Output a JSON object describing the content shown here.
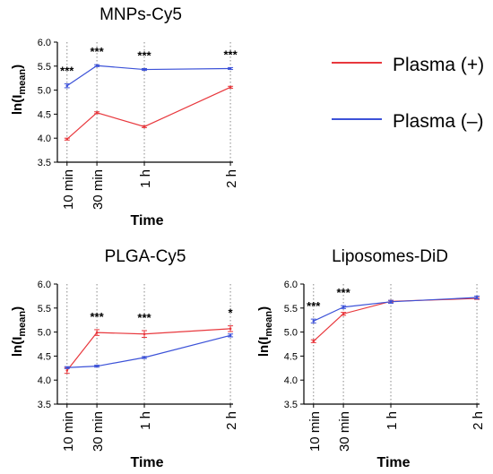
{
  "chart_data": [
    {
      "type": "line",
      "title": "MNPs-Cy5",
      "ylabel": "ln(I",
      "ylabel_sub": "mean",
      "ylabel_close": ")",
      "xlabel": "Time",
      "categories": [
        "10 min",
        "30 min",
        "1 h",
        "2 h"
      ],
      "x": [
        10,
        30,
        60,
        120
      ],
      "ylim": [
        3.5,
        6.0
      ],
      "yticks": [
        "3.5",
        "4.0",
        "4.5",
        "5.0",
        "5.5",
        "6.0"
      ],
      "grid": "vertical dotted lines at each time point",
      "series": [
        {
          "name": "Plasma (+)",
          "color": "#e8383d",
          "values": [
            3.98,
            4.53,
            4.24,
            5.06
          ],
          "errors": [
            0.02,
            0.02,
            0.02,
            0.02
          ]
        },
        {
          "name": "Plasma (–)",
          "color": "#3c52d8",
          "values": [
            5.09,
            5.51,
            5.43,
            5.45
          ],
          "errors": [
            0.04,
            0.02,
            0.02,
            0.02
          ]
        }
      ],
      "annotations": [
        "***",
        "***",
        "***",
        "***"
      ]
    },
    {
      "type": "line",
      "title": "PLGA-Cy5",
      "ylabel": "ln(I",
      "ylabel_sub": "mean",
      "ylabel_close": ")",
      "xlabel": "Time",
      "categories": [
        "10 min",
        "30 min",
        "1 h",
        "2 h"
      ],
      "x": [
        10,
        30,
        60,
        120
      ],
      "ylim": [
        3.5,
        6.0
      ],
      "yticks": [
        "3.5",
        "4.0",
        "4.5",
        "5.0",
        "5.5",
        "6.0"
      ],
      "grid": "vertical dotted lines at each time point",
      "series": [
        {
          "name": "Plasma (+)",
          "color": "#e8383d",
          "values": [
            4.2,
            4.99,
            4.96,
            5.07
          ],
          "errors": [
            0.06,
            0.06,
            0.07,
            0.06
          ]
        },
        {
          "name": "Plasma (–)",
          "color": "#3c52d8",
          "values": [
            4.26,
            4.29,
            4.47,
            4.93
          ],
          "errors": [
            0.02,
            0.02,
            0.02,
            0.03
          ]
        }
      ],
      "annotations": [
        "",
        "***",
        "***",
        "*"
      ]
    },
    {
      "type": "line",
      "title": "Liposomes-DiD",
      "ylabel": "ln(I",
      "ylabel_sub": "mean",
      "ylabel_close": ")",
      "xlabel": "Time",
      "categories": [
        "10 min",
        "30 min",
        "1 h",
        "2 h"
      ],
      "x": [
        10,
        30,
        60,
        120
      ],
      "ylim": [
        3.5,
        6.0
      ],
      "yticks": [
        "3.5",
        "4.0",
        "4.5",
        "5.0",
        "5.5",
        "6.0"
      ],
      "grid": "vertical dotted lines at each time point",
      "series": [
        {
          "name": "Plasma (+)",
          "color": "#e8383d",
          "values": [
            4.81,
            5.38,
            5.64,
            5.7
          ],
          "errors": [
            0.03,
            0.03,
            0.02,
            0.02
          ]
        },
        {
          "name": "Plasma (–)",
          "color": "#3c52d8",
          "values": [
            5.23,
            5.52,
            5.63,
            5.72
          ],
          "errors": [
            0.04,
            0.03,
            0.03,
            0.03
          ]
        }
      ],
      "annotations": [
        "***",
        "***",
        "",
        ""
      ]
    }
  ],
  "legend": {
    "placement": "top-right",
    "items": [
      {
        "label": "Plasma (+)",
        "color": "#e8383d"
      },
      {
        "label": "Plasma (–)",
        "color": "#3c52d8"
      }
    ]
  }
}
